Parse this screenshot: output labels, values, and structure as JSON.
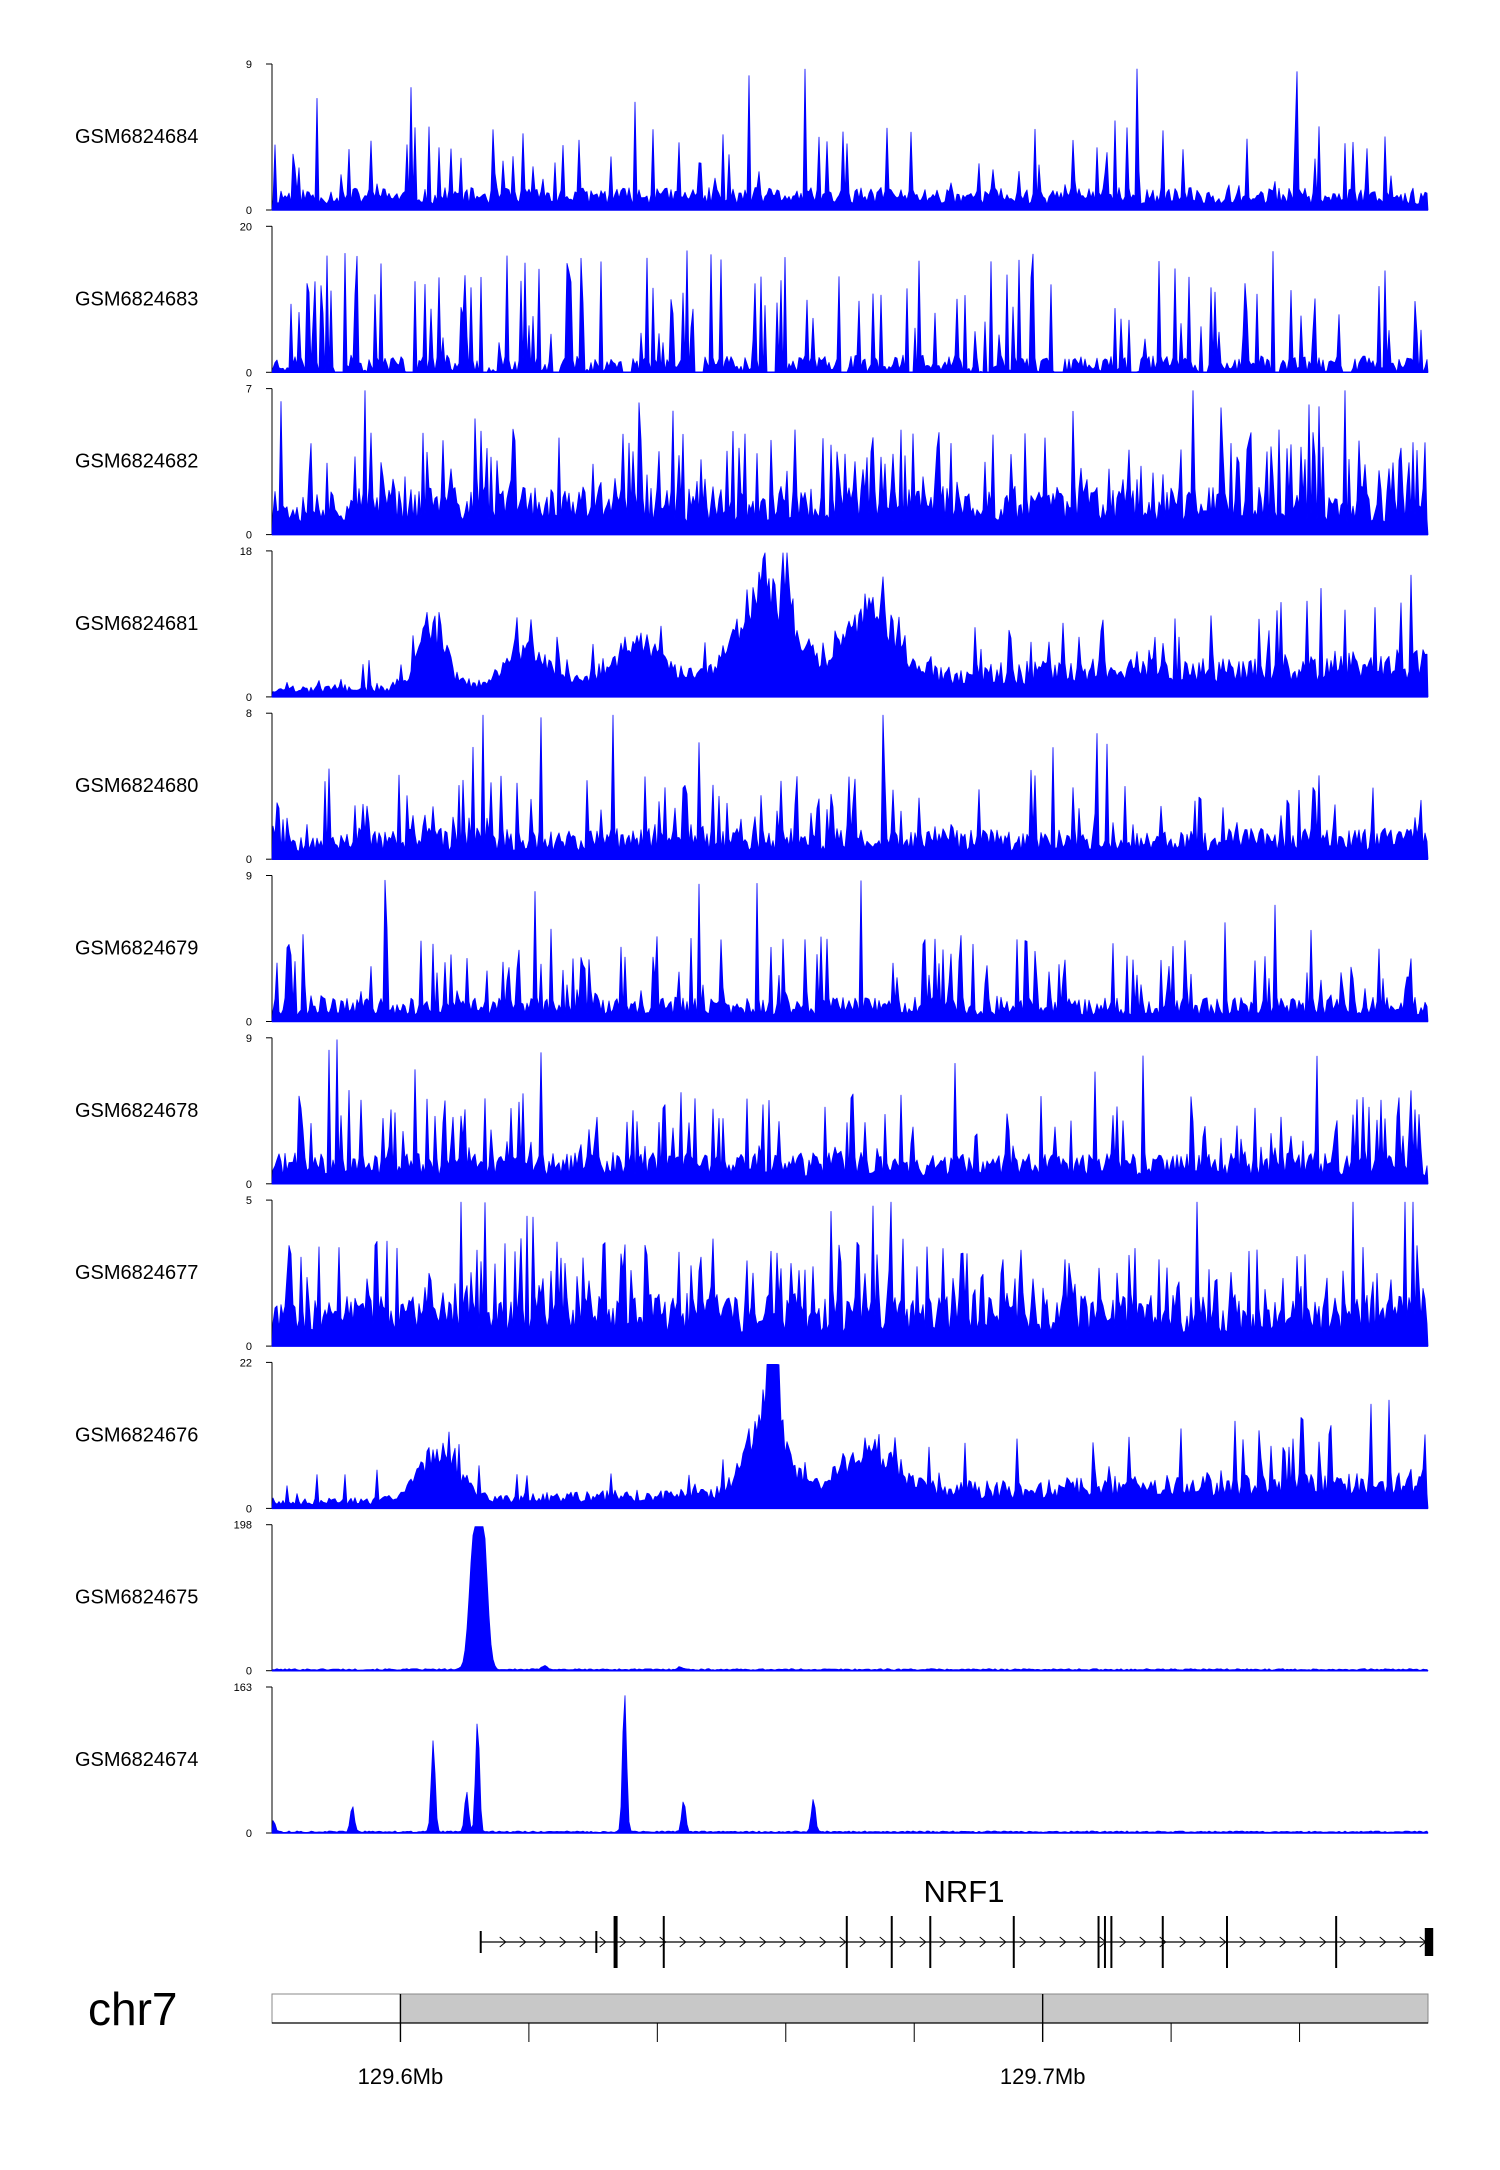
{
  "chart_data": {
    "type": "area",
    "title": "",
    "x_axis": {
      "chromosome": "chr7",
      "range_mb": [
        129.58,
        129.76
      ],
      "tick_labels": [
        {
          "value_mb": 129.6,
          "label": "129.6Mb"
        },
        {
          "value_mb": 129.7,
          "label": "129.7Mb"
        }
      ],
      "minor_ticks_mb": [
        129.62,
        129.64,
        129.66,
        129.68,
        129.72,
        129.74
      ]
    },
    "tracks": [
      {
        "name": "GSM6824684",
        "ymin": 0,
        "ymax": 9,
        "ymin_label": "0",
        "ymax_label": "9",
        "color": "#0000ff",
        "profile": "noise",
        "seed": 11,
        "base": 0.13,
        "spike_prob": 0.14,
        "peaks": []
      },
      {
        "name": "GSM6824683",
        "ymin": 0,
        "ymax": 20,
        "ymin_label": "0",
        "ymax_label": "20",
        "color": "#0000ff",
        "profile": "sparse",
        "seed": 23,
        "base": 0.12,
        "spike_prob": 0.18,
        "peaks": []
      },
      {
        "name": "GSM6824682",
        "ymin": 0,
        "ymax": 7,
        "ymin_label": "0",
        "ymax_label": "7",
        "color": "#0000ff",
        "profile": "noise",
        "seed": 37,
        "base": 0.28,
        "spike_prob": 0.25,
        "peaks": []
      },
      {
        "name": "GSM6824681",
        "ymin": 0,
        "ymax": 18,
        "ymin_label": "0",
        "ymax_label": "18",
        "color": "#0000ff",
        "profile": "broad",
        "seed": 41,
        "base": 0.12,
        "spike_prob": 0.15,
        "peaks": [
          {
            "x": 129.605,
            "h": 0.5,
            "w": 0.002
          },
          {
            "x": 129.62,
            "h": 0.3,
            "w": 0.003
          },
          {
            "x": 129.637,
            "h": 0.3,
            "w": 0.004
          },
          {
            "x": 129.657,
            "h": 0.78,
            "w": 0.004
          },
          {
            "x": 129.673,
            "h": 0.55,
            "w": 0.004
          }
        ]
      },
      {
        "name": "GSM6824680",
        "ymin": 0,
        "ymax": 8,
        "ymin_label": "0",
        "ymax_label": "8",
        "color": "#0000ff",
        "profile": "noise",
        "seed": 53,
        "base": 0.18,
        "spike_prob": 0.2,
        "peaks": []
      },
      {
        "name": "GSM6824679",
        "ymin": 0,
        "ymax": 9,
        "ymin_label": "0",
        "ymax_label": "9",
        "color": "#0000ff",
        "profile": "noise",
        "seed": 67,
        "base": 0.14,
        "spike_prob": 0.18,
        "peaks": []
      },
      {
        "name": "GSM6824678",
        "ymin": 0,
        "ymax": 9,
        "ymin_label": "0",
        "ymax_label": "9",
        "color": "#0000ff",
        "profile": "noise",
        "seed": 71,
        "base": 0.18,
        "spike_prob": 0.2,
        "peaks": []
      },
      {
        "name": "GSM6824677",
        "ymin": 0,
        "ymax": 5,
        "ymin_label": "0",
        "ymax_label": "5",
        "color": "#0000ff",
        "profile": "noise",
        "seed": 83,
        "base": 0.3,
        "spike_prob": 0.25,
        "peaks": []
      },
      {
        "name": "GSM6824676",
        "ymin": 0,
        "ymax": 22,
        "ymin_label": "0",
        "ymax_label": "22",
        "color": "#0000ff",
        "profile": "broad",
        "seed": 97,
        "base": 0.1,
        "spike_prob": 0.12,
        "peaks": [
          {
            "x": 129.606,
            "h": 0.4,
            "w": 0.003
          },
          {
            "x": 129.657,
            "h": 0.6,
            "w": 0.003
          },
          {
            "x": 129.658,
            "h": 0.95,
            "w": 0.0008
          },
          {
            "x": 129.673,
            "h": 0.35,
            "w": 0.004
          }
        ]
      },
      {
        "name": "GSM6824675",
        "ymin": 0,
        "ymax": 198,
        "ymin_label": "0",
        "ymax_label": "198",
        "color": "#0000ff",
        "profile": "peaks",
        "seed": 101,
        "base": 0.01,
        "spike_prob": 0.01,
        "peaks": [
          {
            "x": 129.6114,
            "h": 0.84,
            "w": 0.0007
          },
          {
            "x": 129.6128,
            "h": 1.0,
            "w": 0.0007
          },
          {
            "x": 129.6225,
            "h": 0.03,
            "w": 0.0004
          },
          {
            "x": 129.6435,
            "h": 0.02,
            "w": 0.0004
          }
        ]
      },
      {
        "name": "GSM6824674",
        "ymin": 0,
        "ymax": 163,
        "ymin_label": "0",
        "ymax_label": "163",
        "color": "#0000ff",
        "profile": "peaks",
        "seed": 113,
        "base": 0.01,
        "spike_prob": 0.01,
        "peaks": [
          {
            "x": 129.5802,
            "h": 0.08,
            "w": 0.0003
          },
          {
            "x": 129.5925,
            "h": 0.18,
            "w": 0.0003
          },
          {
            "x": 129.6051,
            "h": 0.63,
            "w": 0.0003
          },
          {
            "x": 129.6103,
            "h": 0.28,
            "w": 0.0003
          },
          {
            "x": 129.612,
            "h": 0.78,
            "w": 0.0003
          },
          {
            "x": 129.6349,
            "h": 0.97,
            "w": 0.0003
          },
          {
            "x": 129.6441,
            "h": 0.22,
            "w": 0.0003
          },
          {
            "x": 129.6643,
            "h": 0.23,
            "w": 0.0003
          }
        ]
      }
    ],
    "gene": {
      "name": "NRF1",
      "strand": "+",
      "start_mb": 129.6125,
      "end_mb": 129.7605,
      "exons_mb": [
        129.6125,
        129.6305,
        129.6335,
        129.641,
        129.6695,
        129.6765,
        129.6825,
        129.6955,
        129.7087,
        129.7097,
        129.7107,
        129.7187,
        129.7287,
        129.7457,
        129.7595
      ]
    },
    "ideogram_band_start_mb": 129.6
  }
}
